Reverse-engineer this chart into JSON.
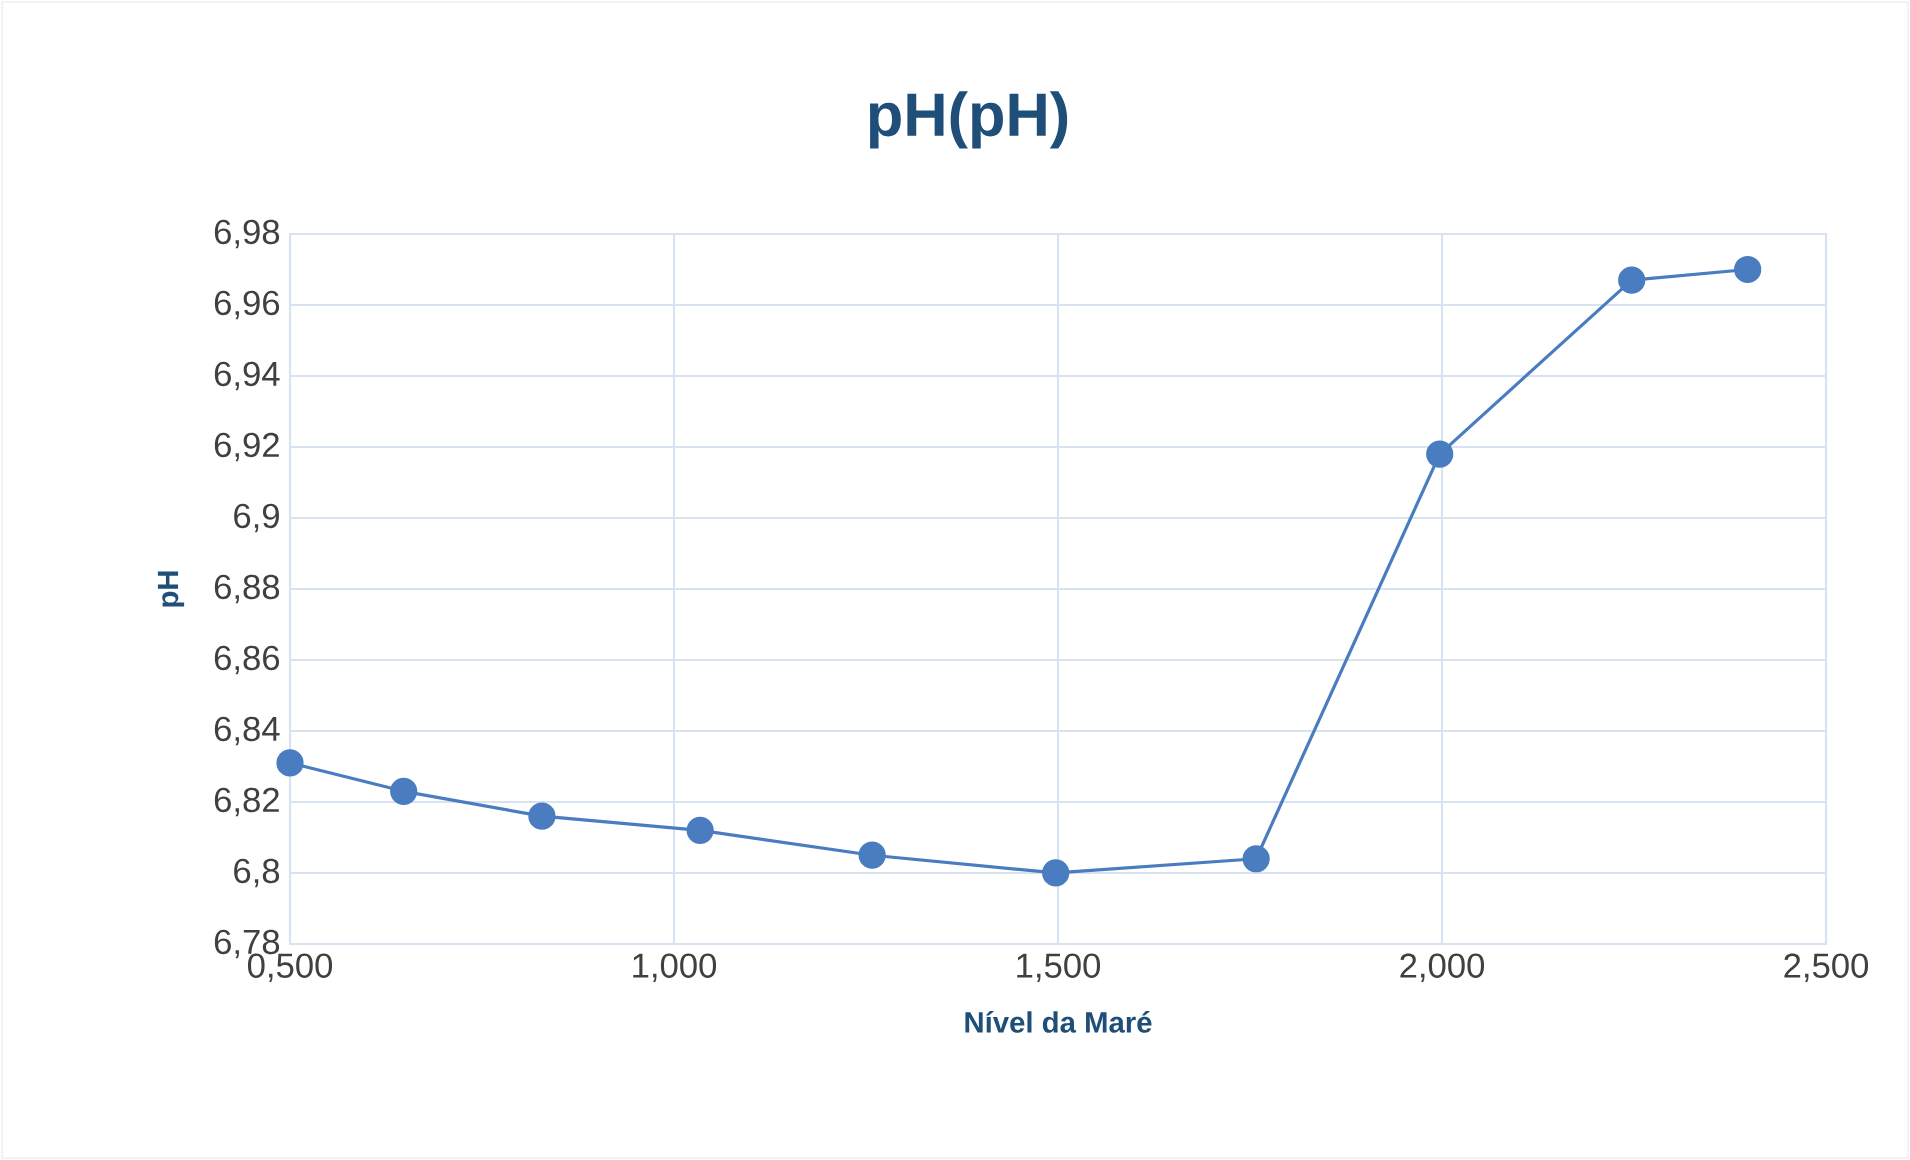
{
  "chart_data": {
    "type": "line",
    "title": "pH(pH)",
    "xlabel": "Nível da Maré",
    "ylabel": "pH",
    "x": [
      0.5,
      0.648,
      0.828,
      1.034,
      1.258,
      1.497,
      1.758,
      1.997,
      2.247,
      2.398
    ],
    "values": [
      6.831,
      6.823,
      6.816,
      6.812,
      6.805,
      6.8,
      6.804,
      6.918,
      6.967,
      6.97
    ],
    "color": "#4a7cc0",
    "marker": "circle",
    "line_style": "solid",
    "grid": true,
    "xlim": [
      0.5,
      2.5
    ],
    "ylim": [
      6.78,
      6.98
    ],
    "xticks": [
      {
        "value": 0.5,
        "label": "0,500"
      },
      {
        "value": 1.0,
        "label": "1,000"
      },
      {
        "value": 1.5,
        "label": "1,500"
      },
      {
        "value": 2.0,
        "label": "2,000"
      },
      {
        "value": 2.5,
        "label": "2,500"
      }
    ],
    "yticks": [
      {
        "value": 6.78,
        "label": "6,78"
      },
      {
        "value": 6.8,
        "label": "6,8"
      },
      {
        "value": 6.82,
        "label": "6,82"
      },
      {
        "value": 6.84,
        "label": "6,84"
      },
      {
        "value": 6.86,
        "label": "6,86"
      },
      {
        "value": 6.88,
        "label": "6,88"
      },
      {
        "value": 6.9,
        "label": "6,9"
      },
      {
        "value": 6.92,
        "label": "6,92"
      },
      {
        "value": 6.94,
        "label": "6,94"
      },
      {
        "value": 6.96,
        "label": "6,96"
      },
      {
        "value": 6.98,
        "label": "6,98"
      }
    ]
  }
}
